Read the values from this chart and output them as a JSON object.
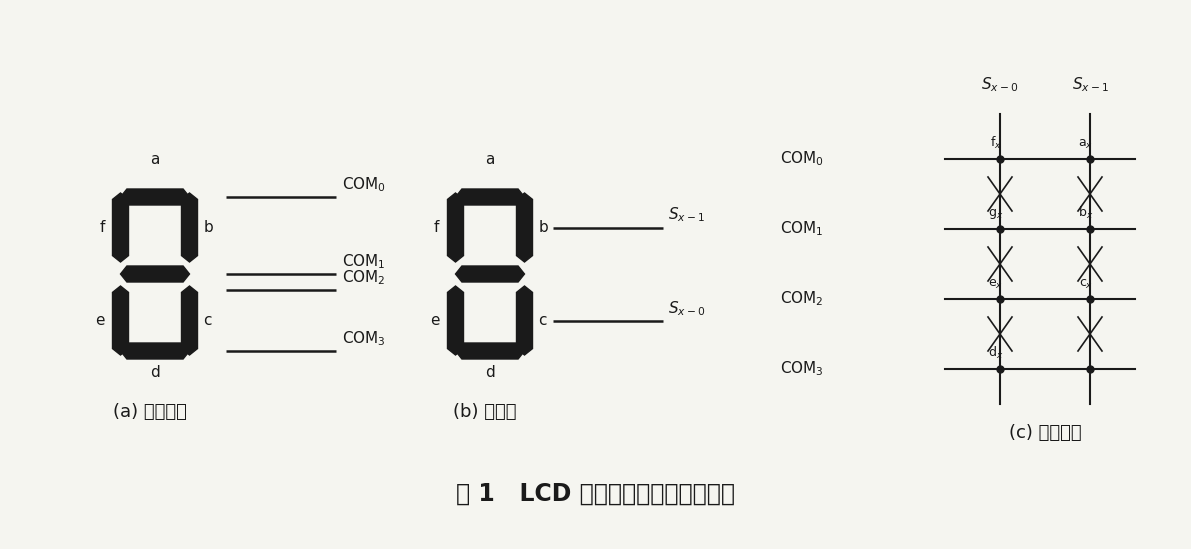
{
  "bg_color": "#f5f5f0",
  "seg_color": "#1a1a1a",
  "line_color": "#1a1a1a",
  "text_color": "#1a1a1a",
  "subtitle_a": "(a) 公共电极",
  "subtitle_b": "(b) 段电极",
  "subtitle_c": "(c) 等效电路",
  "title": "图 1   LCD 电极连接结构及等效电路",
  "label_fs": 11,
  "subtitle_fs": 13,
  "title_fs": 17,
  "com_fs": 11,
  "seg_lfs": 10
}
